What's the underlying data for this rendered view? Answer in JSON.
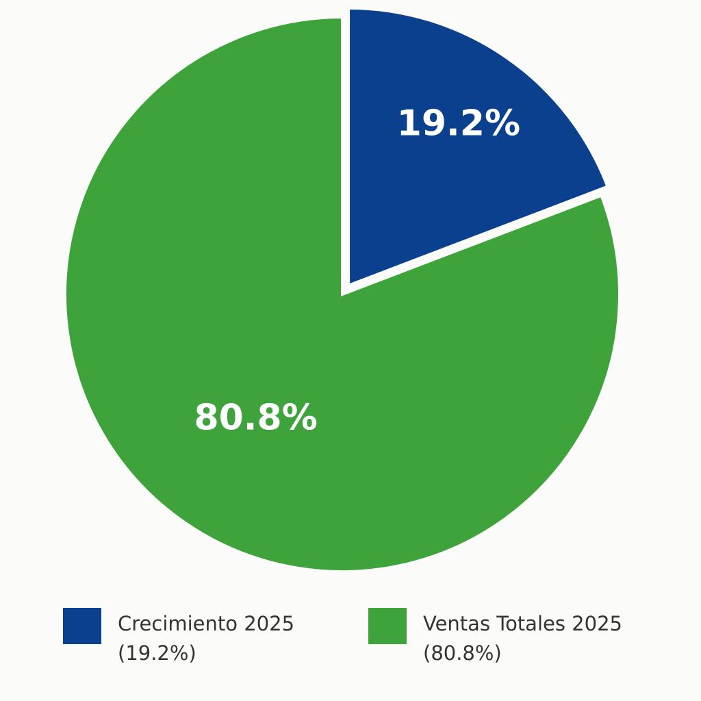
{
  "chart_data": {
    "type": "pie",
    "categories": [
      "Crecimiento 2025",
      "Ventas Totales 2025"
    ],
    "values": [
      19.2,
      80.8
    ],
    "value_labels": [
      "19.2%",
      "80.8%"
    ],
    "legend_value_labels": [
      "(19.2%)",
      "(80.8%)"
    ],
    "colors": [
      "#0a408e",
      "#3ea33a"
    ],
    "exploded": [
      true,
      false
    ],
    "legend": "bottom"
  }
}
